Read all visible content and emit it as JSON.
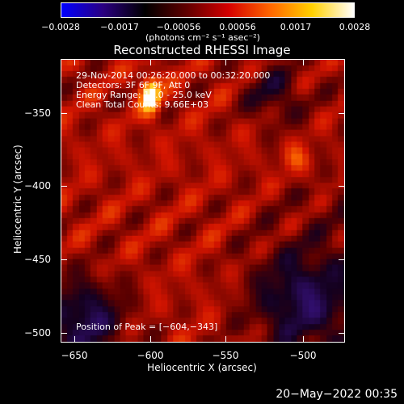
{
  "colorbar": {
    "colors": [
      "#0000ff",
      "#2a0080",
      "#000000",
      "#600000",
      "#d40000",
      "#ff6600",
      "#ffd000",
      "#ffffff"
    ],
    "ticks": [
      "−0.0028",
      "−0.0017",
      "−0.00056",
      "0.00056",
      "0.0017",
      "0.0028"
    ],
    "units": "(photons cm⁻² s⁻¹ asec⁻²)"
  },
  "title": "Reconstructed RHESSI Image",
  "info": {
    "line1": "29-Nov-2014 00:26:20.000 to 00:32:20.000",
    "line2": "Detectors: 3F 6F 9F, Att 0",
    "line3": "Energy Range: 12.0 - 25.0 keV",
    "line4": "Clean    Total Counts: 9.66E+03"
  },
  "peak_text": "Position of Peak = [−604,−343]",
  "axes": {
    "xlabel": "Heliocentric X (arcsec)",
    "ylabel": "Heliocentric Y (arcsec)",
    "xticks": [
      "−650",
      "−600",
      "−550",
      "−500"
    ],
    "yticks": [
      "−350",
      "−400",
      "−450",
      "−500"
    ],
    "xrange": [
      -665,
      -472
    ],
    "yrange": [
      -512,
      -319
    ]
  },
  "peak": {
    "x": -604,
    "y": -343
  },
  "timestamp": "20−May−2022 00:35"
}
